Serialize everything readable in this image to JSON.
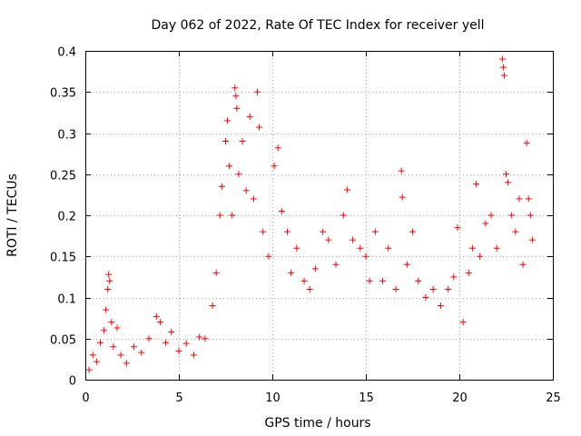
{
  "chart_data": {
    "type": "scatter",
    "title": "Day 062 of 2022, Rate Of TEC Index for receiver yell",
    "xlabel": "GPS time / hours",
    "ylabel": "ROTI / TECUs",
    "xlim": [
      0,
      25
    ],
    "ylim": [
      0,
      0.4
    ],
    "x_ticks": [
      0,
      5,
      10,
      15,
      20,
      25
    ],
    "x_tick_labels": [
      "0",
      "5",
      "10",
      "15",
      "20",
      "25"
    ],
    "y_ticks": [
      0,
      0.05,
      0.1,
      0.15,
      0.2,
      0.25,
      0.3,
      0.35,
      0.4
    ],
    "y_tick_labels": [
      "0",
      "0.05",
      "0.1",
      "0.15",
      "0.2",
      "0.25",
      "0.3",
      "0.35",
      "0.4"
    ],
    "grid": true,
    "marker": "plus",
    "color": "#ff0000",
    "series": [
      {
        "name": "ROTI",
        "points": [
          [
            0.2,
            0.012
          ],
          [
            0.4,
            0.03
          ],
          [
            0.6,
            0.022
          ],
          [
            0.8,
            0.045
          ],
          [
            1.0,
            0.06
          ],
          [
            1.1,
            0.085
          ],
          [
            1.2,
            0.11
          ],
          [
            1.25,
            0.128
          ],
          [
            1.3,
            0.12
          ],
          [
            1.4,
            0.07
          ],
          [
            1.5,
            0.04
          ],
          [
            1.7,
            0.063
          ],
          [
            1.9,
            0.03
          ],
          [
            2.2,
            0.02
          ],
          [
            2.6,
            0.04
          ],
          [
            3.0,
            0.033
          ],
          [
            3.4,
            0.05
          ],
          [
            3.8,
            0.077
          ],
          [
            4.0,
            0.07
          ],
          [
            4.3,
            0.045
          ],
          [
            4.6,
            0.058
          ],
          [
            5.0,
            0.035
          ],
          [
            5.4,
            0.044
          ],
          [
            5.8,
            0.03
          ],
          [
            6.1,
            0.052
          ],
          [
            6.4,
            0.05
          ],
          [
            6.8,
            0.09
          ],
          [
            7.0,
            0.13
          ],
          [
            7.2,
            0.2
          ],
          [
            7.3,
            0.235
          ],
          [
            7.5,
            0.29
          ],
          [
            7.6,
            0.315
          ],
          [
            7.7,
            0.26
          ],
          [
            7.85,
            0.2
          ],
          [
            8.0,
            0.355
          ],
          [
            8.05,
            0.345
          ],
          [
            8.1,
            0.33
          ],
          [
            8.2,
            0.25
          ],
          [
            8.4,
            0.29
          ],
          [
            8.6,
            0.23
          ],
          [
            8.8,
            0.32
          ],
          [
            9.0,
            0.22
          ],
          [
            9.2,
            0.35
          ],
          [
            9.3,
            0.307
          ],
          [
            9.5,
            0.18
          ],
          [
            9.8,
            0.15
          ],
          [
            10.1,
            0.26
          ],
          [
            10.3,
            0.282
          ],
          [
            10.5,
            0.205
          ],
          [
            10.8,
            0.18
          ],
          [
            11.0,
            0.13
          ],
          [
            11.3,
            0.16
          ],
          [
            11.7,
            0.12
          ],
          [
            12.0,
            0.11
          ],
          [
            12.3,
            0.135
          ],
          [
            12.7,
            0.18
          ],
          [
            13.0,
            0.17
          ],
          [
            13.4,
            0.14
          ],
          [
            13.8,
            0.2
          ],
          [
            14.0,
            0.231
          ],
          [
            14.3,
            0.17
          ],
          [
            14.7,
            0.16
          ],
          [
            15.0,
            0.15
          ],
          [
            15.2,
            0.12
          ],
          [
            15.5,
            0.18
          ],
          [
            15.9,
            0.12
          ],
          [
            16.2,
            0.16
          ],
          [
            16.6,
            0.11
          ],
          [
            16.9,
            0.254
          ],
          [
            16.95,
            0.222
          ],
          [
            17.2,
            0.14
          ],
          [
            17.5,
            0.18
          ],
          [
            17.8,
            0.12
          ],
          [
            18.2,
            0.1
          ],
          [
            18.6,
            0.11
          ],
          [
            19.0,
            0.09
          ],
          [
            19.4,
            0.11
          ],
          [
            19.7,
            0.125
          ],
          [
            19.9,
            0.185
          ],
          [
            20.2,
            0.07
          ],
          [
            20.5,
            0.13
          ],
          [
            20.7,
            0.16
          ],
          [
            20.9,
            0.238
          ],
          [
            21.1,
            0.15
          ],
          [
            21.4,
            0.19
          ],
          [
            21.7,
            0.2
          ],
          [
            22.0,
            0.16
          ],
          [
            22.3,
            0.39
          ],
          [
            22.35,
            0.38
          ],
          [
            22.4,
            0.37
          ],
          [
            22.5,
            0.25
          ],
          [
            22.6,
            0.24
          ],
          [
            22.8,
            0.2
          ],
          [
            23.0,
            0.18
          ],
          [
            23.2,
            0.22
          ],
          [
            23.4,
            0.14
          ],
          [
            23.6,
            0.288
          ],
          [
            23.7,
            0.22
          ],
          [
            23.8,
            0.2
          ],
          [
            23.9,
            0.17
          ]
        ]
      }
    ]
  }
}
